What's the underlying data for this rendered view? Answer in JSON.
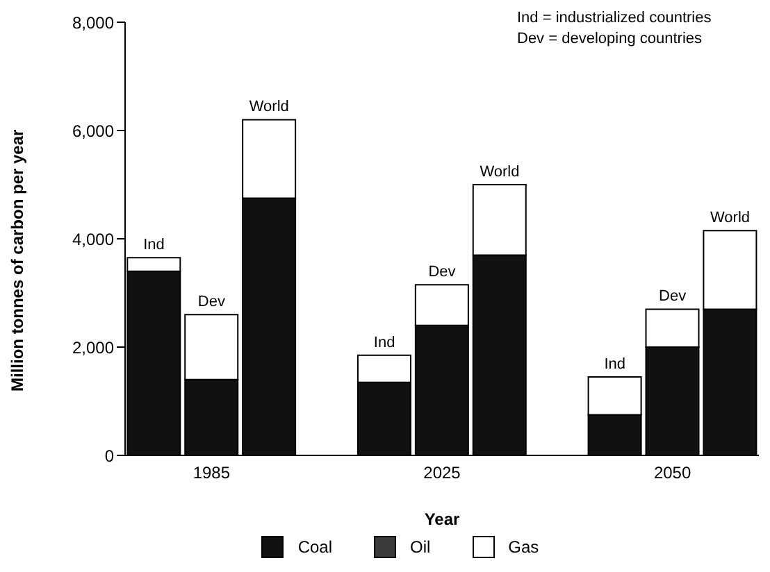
{
  "chart_data": {
    "type": "bar",
    "stacked": true,
    "xlabel": "Year",
    "ylabel": "Million tonnes of carbon per year",
    "categories": [
      null,
      "1985",
      null,
      null,
      null,
      "2025",
      null,
      null,
      null,
      "2050",
      null
    ],
    "series": [
      {
        "name": "Coal",
        "color": "#111111",
        "values": [
          3400,
          1400,
          4750,
          null,
          1350,
          2400,
          3700,
          null,
          750,
          2000,
          2700
        ]
      },
      {
        "name": "Oil",
        "color": "#3a3a3a",
        "values": [
          null,
          null,
          null,
          null,
          null,
          null,
          null,
          null,
          null,
          null,
          null
        ]
      },
      {
        "name": "Gas",
        "color": "#ffffff",
        "values": [
          250,
          1200,
          1450,
          null,
          500,
          750,
          1300,
          null,
          700,
          700,
          1450
        ]
      }
    ],
    "ylim": [
      0,
      8000
    ],
    "yticks": [
      {
        "value": 0,
        "label": "0"
      },
      {
        "value": 2000,
        "label": "2,000"
      },
      {
        "value": 4000,
        "label": "4,000"
      },
      {
        "value": 6000,
        "label": "6,000"
      },
      {
        "value": 8000,
        "label": "8,000"
      }
    ],
    "grid": false,
    "legend": "bottom",
    "annotations": [
      "Ind  = industrialized countries",
      "Dev = developing countries",
      {
        "text": "Ind",
        "y": 3650
      },
      {
        "text": "Dev",
        "y": 2600
      },
      {
        "text": "World",
        "y": 6200
      },
      {
        "text": "Ind",
        "y": 1850
      },
      {
        "text": "Dev",
        "y": 3150
      },
      {
        "text": "World",
        "y": 5000
      },
      {
        "text": "Ind",
        "y": 1450
      },
      {
        "text": "Dev",
        "y": 2700
      },
      {
        "text": "World",
        "y": 4150
      }
    ]
  }
}
